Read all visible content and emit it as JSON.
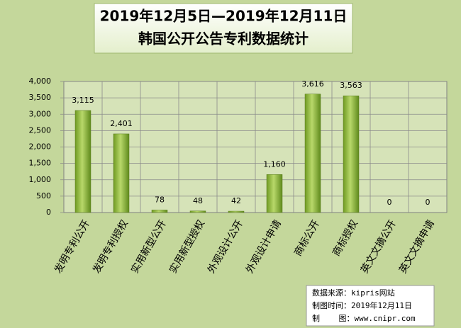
{
  "chart_data": {
    "type": "bar",
    "title": [
      "2019年12月5日—2019年12月11日",
      "韩国公开公告专利数据统计"
    ],
    "categories": [
      "发明专利公开",
      "发明专利授权",
      "实用新型公开",
      "实用新型授权",
      "外观设计公开",
      "外观设计申请",
      "商标公开",
      "商标授权",
      "英文文摘公开",
      "英文文摘申请"
    ],
    "values": [
      3115,
      2401,
      78,
      48,
      42,
      1160,
      3616,
      3563,
      0,
      0
    ],
    "value_labels": [
      "3,115",
      "2,401",
      "78",
      "48",
      "42",
      "1,160",
      "3,616",
      "3,563",
      "0",
      "0"
    ],
    "color": "#8db33f",
    "ylim": [
      0,
      4000
    ],
    "yticks": [
      0,
      {
        "value": 500,
        "label": "500"
      },
      {
        "value": 1000,
        "label": "1,000"
      },
      {
        "value": 1500,
        "label": "1,500"
      },
      {
        "value": 2000,
        "label": "2,000"
      },
      {
        "value": 2500,
        "label": "2,500"
      },
      {
        "value": 3000,
        "label": "3,000"
      },
      {
        "value": 3500,
        "label": "3,500"
      },
      {
        "value": 4000,
        "label": "4,000"
      }
    ],
    "grid": true,
    "annotations": [
      "数据来源：kipris网站",
      "制图时间：2019年12月11日",
      "制    图：www.cnipr.com"
    ]
  }
}
